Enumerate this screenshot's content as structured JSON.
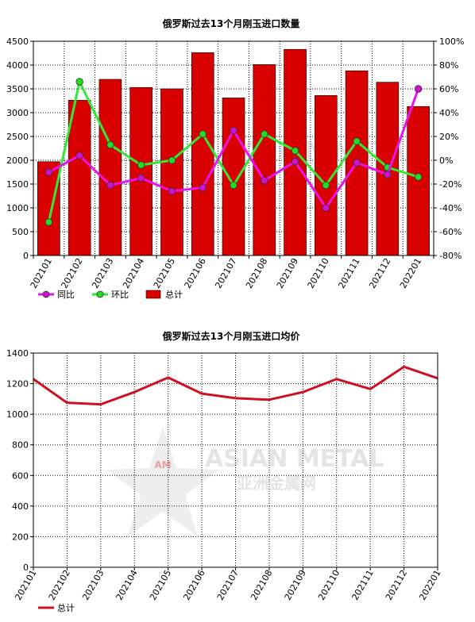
{
  "watermark": {
    "brand": "ASIAN METAL",
    "brand_cn": "亚洲金属网",
    "logo": "AM"
  },
  "chart_data": [
    {
      "type": "bar",
      "title": "俄罗斯过去13个月刚玉进口数量",
      "categories": [
        "202101",
        "202102",
        "202103",
        "202104",
        "202105",
        "202106",
        "202107",
        "202108",
        "202109",
        "202110",
        "202111",
        "202112",
        "202201"
      ],
      "ylim": [
        0,
        4500
      ],
      "yticks": [
        0,
        500,
        1000,
        1500,
        2000,
        2500,
        3000,
        3500,
        4000,
        4500
      ],
      "y2lim": [
        -80,
        100
      ],
      "y2ticks": [
        "-80%",
        "-60%",
        "-40%",
        "-20%",
        "0%",
        "20%",
        "40%",
        "60%",
        "80%",
        "100%"
      ],
      "grid": true,
      "legend_position": "bottom-left",
      "series": [
        {
          "name": "总计",
          "kind": "bar",
          "axis": "left",
          "color": "#d90000",
          "values": [
            1970,
            3260,
            3700,
            3530,
            3500,
            4260,
            3310,
            4010,
            4330,
            3360,
            3880,
            3640,
            3130
          ]
        },
        {
          "name": "同比",
          "kind": "line",
          "axis": "right",
          "color": "#e815e8",
          "marker": "#d00fd0",
          "values": [
            -10,
            4,
            -21,
            -15,
            -26,
            -23,
            25,
            -17,
            -1,
            -40,
            -2,
            -12,
            60
          ]
        },
        {
          "name": "环比",
          "kind": "line",
          "axis": "right",
          "color": "#33e833",
          "marker": "#22dd22",
          "values": [
            -52,
            66,
            13,
            -4,
            0,
            22,
            -21,
            22,
            8,
            -21,
            16,
            -6,
            -14
          ]
        }
      ]
    },
    {
      "type": "line",
      "title": "俄罗斯过去13个月刚玉进口均价",
      "categories": [
        "202101",
        "202102",
        "202103",
        "202104",
        "202105",
        "202106",
        "202107",
        "202108",
        "202109",
        "202110",
        "202111",
        "202112",
        "202201"
      ],
      "ylim": [
        0,
        1400
      ],
      "yticks": [
        0,
        200,
        400,
        600,
        800,
        1000,
        1200,
        1400
      ],
      "grid": true,
      "legend_position": "bottom-left",
      "series": [
        {
          "name": "总计",
          "color": "#cc1122",
          "values": [
            1230,
            1075,
            1065,
            1145,
            1240,
            1135,
            1105,
            1095,
            1145,
            1230,
            1165,
            1310,
            1235
          ]
        }
      ]
    }
  ]
}
